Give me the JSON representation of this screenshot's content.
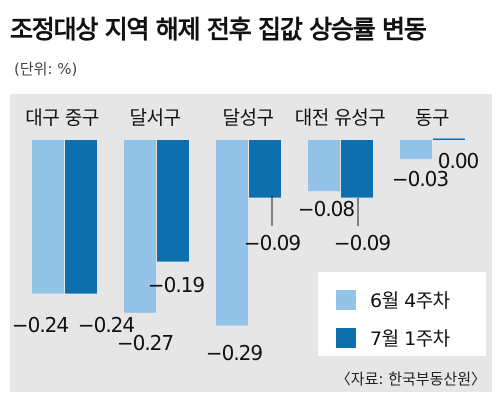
{
  "title": "조정대상 지역 해제 전후 집값 상승률 변동",
  "unit": "(단위: %)",
  "source": "〈자료: 한국부동산원〉",
  "chart_data": {
    "type": "bar",
    "categories": [
      "대구 중구",
      "달서구",
      "달성구",
      "대전 유성구",
      "동구"
    ],
    "series": [
      {
        "name": "6월 4주차",
        "values": [
          -0.24,
          -0.27,
          -0.29,
          -0.08,
          -0.03
        ],
        "labels": [
          "−0.24",
          "−0.27",
          "−0.29",
          "−0.08",
          "−0.03"
        ],
        "color": "#93c4e8"
      },
      {
        "name": "7월 1주차",
        "values": [
          -0.24,
          -0.19,
          -0.09,
          -0.09,
          0.0
        ],
        "labels": [
          "−0.24",
          "−0.19",
          "−0.09",
          "−0.09",
          "0.00"
        ],
        "color": "#0d6fae"
      }
    ],
    "ylim": [
      -0.3,
      0
    ],
    "grid": false,
    "legend": "bottom-right"
  }
}
